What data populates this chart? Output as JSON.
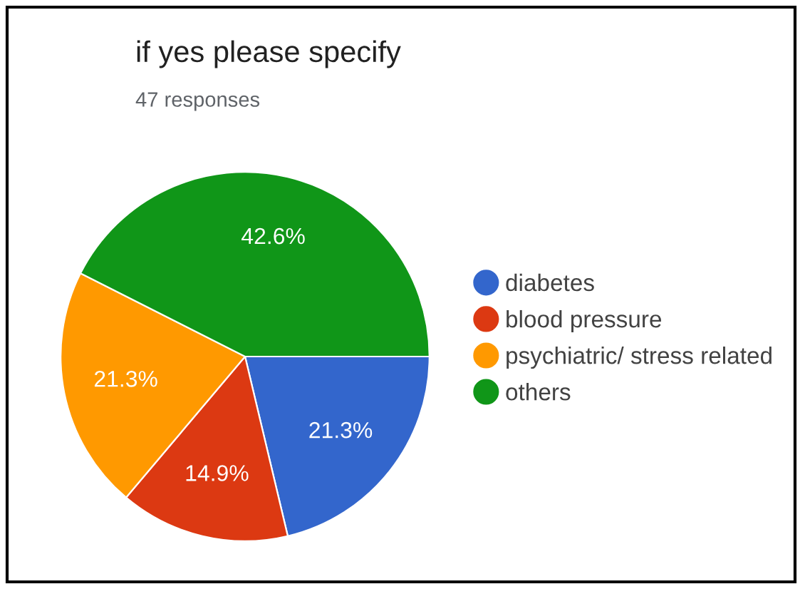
{
  "chart_data": {
    "type": "pie",
    "title": "if yes please specify",
    "subtitle": "47 responses",
    "categories": [
      "diabetes",
      "blood pressure",
      "psychiatric/ stress related",
      "others"
    ],
    "values": [
      21.3,
      14.9,
      21.3,
      42.6
    ],
    "colors": [
      "#3366cc",
      "#dc3912",
      "#ff9900",
      "#109618"
    ],
    "value_labels": [
      "21.3%",
      "14.9%",
      "21.3%",
      "42.6%"
    ],
    "legend": "right"
  }
}
